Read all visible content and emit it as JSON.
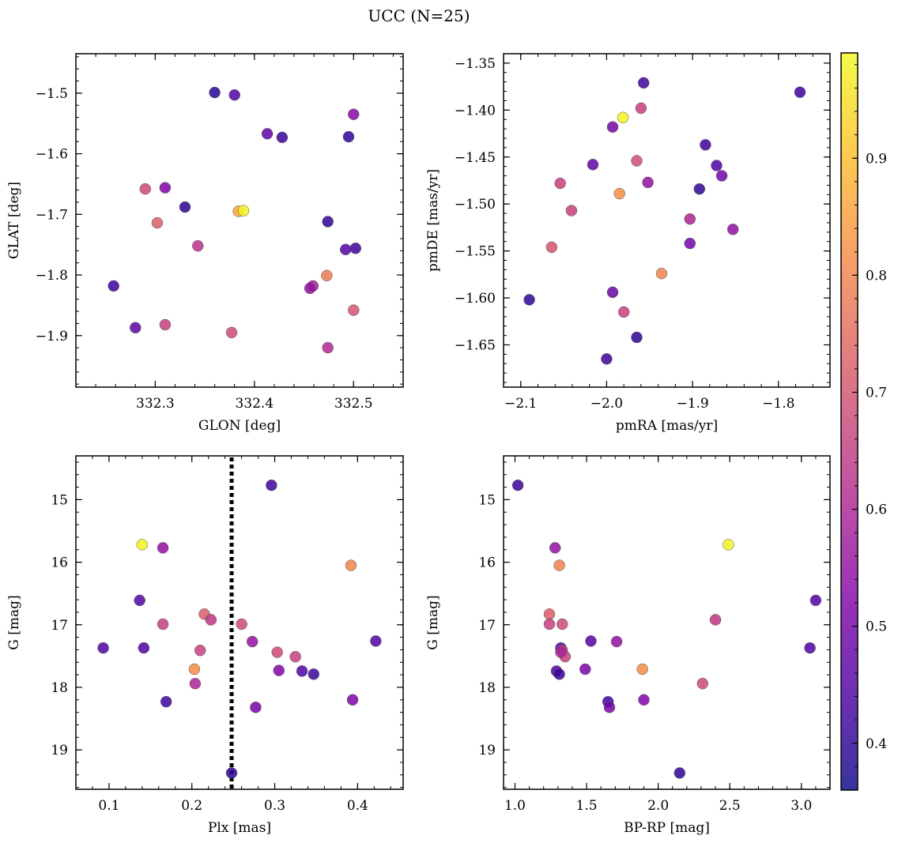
{
  "figure": {
    "title": "UCC (N=25)"
  },
  "colorbar": {
    "ticks": [
      "0.4",
      "0.5",
      "0.6",
      "0.7",
      "0.8",
      "0.9"
    ],
    "range": [
      0.36,
      0.99
    ],
    "colormap": "plasma"
  },
  "chart_data": [
    {
      "type": "scatter",
      "name": "GLON-GLAT",
      "xlabel": "GLON [deg]",
      "ylabel": "GLAT [deg]",
      "xlim": [
        332.22,
        332.55
      ],
      "ylim": [
        -1.985,
        -1.435
      ],
      "xticks": [
        332.3,
        332.4,
        332.5
      ],
      "xtick_labels": [
        "332.3",
        "332.4",
        "332.5"
      ],
      "yticks": [
        -1.9,
        -1.8,
        -1.7,
        -1.6,
        -1.5
      ],
      "ytick_labels": [
        "−1.9",
        "−1.8",
        "−1.7",
        "−1.6",
        "−1.5"
      ],
      "points": [
        {
          "x": 332.36,
          "y": -1.499,
          "c": 0.39
        },
        {
          "x": 332.38,
          "y": -1.503,
          "c": 0.44
        },
        {
          "x": 332.413,
          "y": -1.567,
          "c": 0.47
        },
        {
          "x": 332.428,
          "y": -1.573,
          "c": 0.42
        },
        {
          "x": 332.5,
          "y": -1.535,
          "c": 0.53
        },
        {
          "x": 332.495,
          "y": -1.572,
          "c": 0.4
        },
        {
          "x": 332.29,
          "y": -1.658,
          "c": 0.68
        },
        {
          "x": 332.31,
          "y": -1.656,
          "c": 0.52
        },
        {
          "x": 332.33,
          "y": -1.688,
          "c": 0.4
        },
        {
          "x": 332.384,
          "y": -1.695,
          "c": 0.86
        },
        {
          "x": 332.389,
          "y": -1.694,
          "c": 0.98
        },
        {
          "x": 332.302,
          "y": -1.714,
          "c": 0.72
        },
        {
          "x": 332.474,
          "y": -1.712,
          "c": 0.4
        },
        {
          "x": 332.343,
          "y": -1.752,
          "c": 0.63
        },
        {
          "x": 332.492,
          "y": -1.758,
          "c": 0.45
        },
        {
          "x": 332.502,
          "y": -1.756,
          "c": 0.42
        },
        {
          "x": 332.473,
          "y": -1.801,
          "c": 0.78
        },
        {
          "x": 332.459,
          "y": -1.818,
          "c": 0.58
        },
        {
          "x": 332.456,
          "y": -1.822,
          "c": 0.55
        },
        {
          "x": 332.258,
          "y": -1.818,
          "c": 0.42
        },
        {
          "x": 332.5,
          "y": -1.858,
          "c": 0.7
        },
        {
          "x": 332.28,
          "y": -1.887,
          "c": 0.46
        },
        {
          "x": 332.31,
          "y": -1.882,
          "c": 0.66
        },
        {
          "x": 332.377,
          "y": -1.895,
          "c": 0.68
        },
        {
          "x": 332.474,
          "y": -1.92,
          "c": 0.61
        }
      ]
    },
    {
      "type": "scatter",
      "name": "pmRA-pmDE",
      "xlabel": "pmRA [mas/yr]",
      "ylabel": "pmDE [mas/yr]",
      "xlim": [
        -2.12,
        -1.74
      ],
      "ylim": [
        -1.695,
        -1.34
      ],
      "xticks": [
        -2.1,
        -2.0,
        -1.9,
        -1.8
      ],
      "xtick_labels": [
        "−2.1",
        "−2.0",
        "−1.9",
        "−1.8"
      ],
      "yticks": [
        -1.65,
        -1.6,
        -1.55,
        -1.5,
        -1.45,
        -1.4,
        -1.35
      ],
      "ytick_labels": [
        "−1.65",
        "−1.60",
        "−1.55",
        "−1.50",
        "−1.45",
        "−1.40",
        "−1.35"
      ],
      "points": [
        {
          "x": -1.957,
          "y": -1.371,
          "c": 0.42
        },
        {
          "x": -1.775,
          "y": -1.381,
          "c": 0.42
        },
        {
          "x": -1.96,
          "y": -1.398,
          "c": 0.66
        },
        {
          "x": -1.981,
          "y": -1.408,
          "c": 0.98
        },
        {
          "x": -1.993,
          "y": -1.418,
          "c": 0.5
        },
        {
          "x": -1.885,
          "y": -1.437,
          "c": 0.42
        },
        {
          "x": -1.965,
          "y": -1.454,
          "c": 0.69
        },
        {
          "x": -2.016,
          "y": -1.458,
          "c": 0.47
        },
        {
          "x": -1.872,
          "y": -1.459,
          "c": 0.44
        },
        {
          "x": -1.866,
          "y": -1.47,
          "c": 0.5
        },
        {
          "x": -2.054,
          "y": -1.478,
          "c": 0.66
        },
        {
          "x": -1.952,
          "y": -1.477,
          "c": 0.55
        },
        {
          "x": -1.892,
          "y": -1.484,
          "c": 0.4
        },
        {
          "x": -1.985,
          "y": -1.489,
          "c": 0.82
        },
        {
          "x": -2.041,
          "y": -1.507,
          "c": 0.66
        },
        {
          "x": -1.903,
          "y": -1.516,
          "c": 0.6
        },
        {
          "x": -1.853,
          "y": -1.527,
          "c": 0.55
        },
        {
          "x": -1.903,
          "y": -1.542,
          "c": 0.5
        },
        {
          "x": -2.064,
          "y": -1.546,
          "c": 0.7
        },
        {
          "x": -1.936,
          "y": -1.574,
          "c": 0.8
        },
        {
          "x": -1.993,
          "y": -1.594,
          "c": 0.48
        },
        {
          "x": -2.09,
          "y": -1.602,
          "c": 0.4
        },
        {
          "x": -1.98,
          "y": -1.615,
          "c": 0.66
        },
        {
          "x": -1.965,
          "y": -1.642,
          "c": 0.4
        },
        {
          "x": -2.0,
          "y": -1.665,
          "c": 0.42
        }
      ]
    },
    {
      "type": "scatter",
      "name": "Plx-G",
      "xlabel": "Plx [mas]",
      "ylabel": "G [mag]",
      "xlim": [
        0.06,
        0.455
      ],
      "ylim": [
        19.63,
        14.3
      ],
      "xticks": [
        0.1,
        0.2,
        0.3,
        0.4
      ],
      "xtick_labels": [
        "0.1",
        "0.2",
        "0.3",
        "0.4"
      ],
      "yticks": [
        15,
        16,
        17,
        18,
        19
      ],
      "ytick_labels": [
        "15",
        "16",
        "17",
        "18",
        "19"
      ],
      "vline": 0.248,
      "points": [
        {
          "x": 0.296,
          "y": 14.77,
          "c": 0.42
        },
        {
          "x": 0.14,
          "y": 15.72,
          "c": 0.98
        },
        {
          "x": 0.165,
          "y": 15.77,
          "c": 0.55
        },
        {
          "x": 0.392,
          "y": 16.05,
          "c": 0.8
        },
        {
          "x": 0.137,
          "y": 16.61,
          "c": 0.45
        },
        {
          "x": 0.215,
          "y": 16.83,
          "c": 0.72
        },
        {
          "x": 0.223,
          "y": 16.92,
          "c": 0.64
        },
        {
          "x": 0.165,
          "y": 16.99,
          "c": 0.66
        },
        {
          "x": 0.26,
          "y": 16.99,
          "c": 0.68
        },
        {
          "x": 0.422,
          "y": 17.26,
          "c": 0.45
        },
        {
          "x": 0.273,
          "y": 17.27,
          "c": 0.55
        },
        {
          "x": 0.093,
          "y": 17.37,
          "c": 0.44
        },
        {
          "x": 0.142,
          "y": 17.37,
          "c": 0.44
        },
        {
          "x": 0.21,
          "y": 17.41,
          "c": 0.66
        },
        {
          "x": 0.303,
          "y": 17.44,
          "c": 0.68
        },
        {
          "x": 0.325,
          "y": 17.51,
          "c": 0.66
        },
        {
          "x": 0.203,
          "y": 17.71,
          "c": 0.82
        },
        {
          "x": 0.305,
          "y": 17.73,
          "c": 0.52
        },
        {
          "x": 0.333,
          "y": 17.74,
          "c": 0.44
        },
        {
          "x": 0.347,
          "y": 17.79,
          "c": 0.42
        },
        {
          "x": 0.204,
          "y": 17.94,
          "c": 0.6
        },
        {
          "x": 0.394,
          "y": 18.2,
          "c": 0.52
        },
        {
          "x": 0.169,
          "y": 18.23,
          "c": 0.42
        },
        {
          "x": 0.277,
          "y": 18.32,
          "c": 0.5
        },
        {
          "x": 0.248,
          "y": 19.37,
          "c": 0.4
        }
      ]
    },
    {
      "type": "scatter",
      "name": "BPRP-G",
      "xlabel": "BP-RP [mag]",
      "ylabel": "G [mag]",
      "xlim": [
        0.92,
        3.2
      ],
      "ylim": [
        19.63,
        14.3
      ],
      "xticks": [
        1.0,
        1.5,
        2.0,
        2.5,
        3.0
      ],
      "xtick_labels": [
        "1.0",
        "1.5",
        "2.0",
        "2.5",
        "3.0"
      ],
      "yticks": [
        15,
        16,
        17,
        18,
        19
      ],
      "ytick_labels": [
        "15",
        "16",
        "17",
        "18",
        "19"
      ],
      "points": [
        {
          "x": 1.02,
          "y": 14.77,
          "c": 0.42
        },
        {
          "x": 2.49,
          "y": 15.72,
          "c": 0.98
        },
        {
          "x": 1.28,
          "y": 15.77,
          "c": 0.55
        },
        {
          "x": 1.31,
          "y": 16.05,
          "c": 0.8
        },
        {
          "x": 3.1,
          "y": 16.61,
          "c": 0.45
        },
        {
          "x": 1.24,
          "y": 16.83,
          "c": 0.72
        },
        {
          "x": 2.4,
          "y": 16.92,
          "c": 0.64
        },
        {
          "x": 1.24,
          "y": 16.99,
          "c": 0.66
        },
        {
          "x": 1.33,
          "y": 16.99,
          "c": 0.68
        },
        {
          "x": 1.53,
          "y": 17.26,
          "c": 0.45
        },
        {
          "x": 1.71,
          "y": 17.27,
          "c": 0.55
        },
        {
          "x": 1.32,
          "y": 17.37,
          "c": 0.44
        },
        {
          "x": 3.06,
          "y": 17.37,
          "c": 0.44
        },
        {
          "x": 1.33,
          "y": 17.41,
          "c": 0.66
        },
        {
          "x": 1.35,
          "y": 17.51,
          "c": 0.66
        },
        {
          "x": 1.49,
          "y": 17.71,
          "c": 0.52
        },
        {
          "x": 1.89,
          "y": 17.71,
          "c": 0.82
        },
        {
          "x": 1.29,
          "y": 17.74,
          "c": 0.44
        },
        {
          "x": 1.31,
          "y": 17.79,
          "c": 0.42
        },
        {
          "x": 2.31,
          "y": 17.94,
          "c": 0.68
        },
        {
          "x": 1.9,
          "y": 18.2,
          "c": 0.52
        },
        {
          "x": 1.65,
          "y": 18.23,
          "c": 0.42
        },
        {
          "x": 1.66,
          "y": 18.32,
          "c": 0.5
        },
        {
          "x": 2.15,
          "y": 19.37,
          "c": 0.4
        },
        {
          "x": 1.32,
          "y": 17.44,
          "c": 0.6
        }
      ]
    }
  ]
}
